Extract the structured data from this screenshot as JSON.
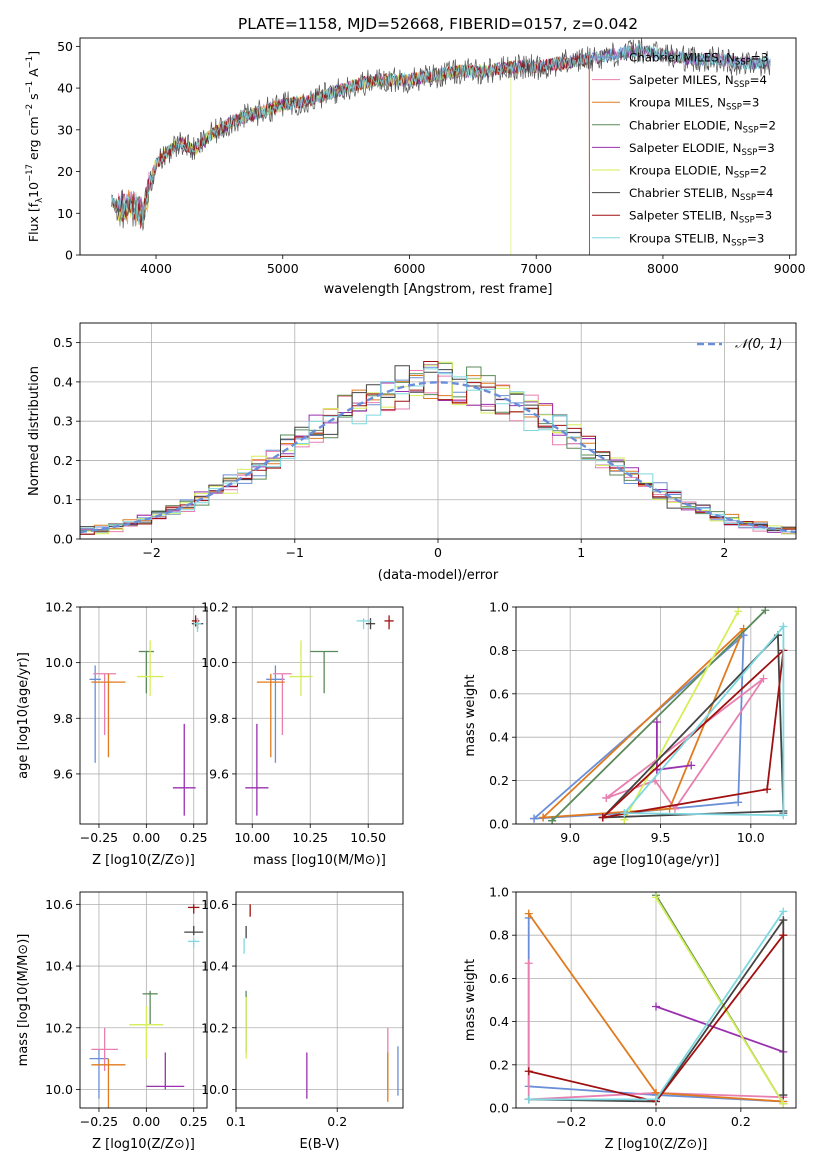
{
  "figure_title": "PLATE=1158, MJD=52668, FIBERID=0157, z=0.042",
  "colors": {
    "Chabrier MILES": "#6a8fd8",
    "Salpeter MILES": "#e87fb0",
    "Kroupa MILES": "#e07a1e",
    "Chabrier ELODIE": "#5a8a5a",
    "Salpeter ELODIE": "#9a30b0",
    "Kroupa ELODIE": "#d6ee5a",
    "Chabrier STELIB": "#444444",
    "Salpeter STELIB": "#a01010",
    "Kroupa STELIB": "#7fd8e0"
  },
  "chart_data": [
    {
      "id": "spectrum",
      "type": "line",
      "xlabel": "wavelength [Angstrom, rest frame]",
      "ylabel_pre": "Flux [f",
      "ylabel_sub": "λ",
      "ylabel_mid": "10",
      "ylabel_sup1": "−17",
      "ylabel_post": " erg cm",
      "ylabel_sup2": "−2",
      "ylabel_post2": " s",
      "ylabel_sup3": "−1",
      "ylabel_post3": " A",
      "ylabel_sup4": "−1",
      "ylabel_end": "]",
      "xlim": [
        3400,
        9050
      ],
      "ylim": [
        0,
        52
      ],
      "xticks": [
        "4000",
        "5000",
        "6000",
        "7000",
        "8000",
        "9000"
      ],
      "xtick_values": [
        4000,
        5000,
        6000,
        7000,
        8000,
        9000
      ],
      "yticks": [
        "0",
        "10",
        "20",
        "30",
        "40",
        "50"
      ],
      "ytick_values": [
        0,
        10,
        20,
        30,
        40,
        50
      ],
      "continuum": {
        "x": [
          3650,
          3700,
          3800,
          3900,
          3950,
          4000,
          4100,
          4200,
          4300,
          4400,
          4500,
          4600,
          4700,
          4800,
          4900,
          5000,
          5200,
          5400,
          5600,
          5800,
          6000,
          6200,
          6400,
          6600,
          6800,
          7000,
          7200,
          7400,
          7600,
          7800,
          8000,
          8200,
          8400,
          8600,
          8800
        ],
        "y": [
          13,
          11,
          12,
          10,
          17,
          22,
          25,
          27,
          25,
          28,
          30,
          32,
          33,
          34,
          35,
          36,
          37,
          39,
          41,
          42,
          42,
          43,
          44,
          44,
          45,
          45,
          46,
          47,
          48,
          49,
          48,
          47,
          47,
          46,
          46
        ]
      },
      "legend": [
        {
          "name": "Chabrier MILES",
          "nssp": "3"
        },
        {
          "name": "Salpeter MILES",
          "nssp": "4"
        },
        {
          "name": "Kroupa MILES",
          "nssp": "3"
        },
        {
          "name": "Chabrier ELODIE",
          "nssp": "2"
        },
        {
          "name": "Salpeter ELODIE",
          "nssp": "3"
        },
        {
          "name": "Kroupa ELODIE",
          "nssp": "2"
        },
        {
          "name": "Chabrier STELIB",
          "nssp": "4"
        },
        {
          "name": "Salpeter STELIB",
          "nssp": "3"
        },
        {
          "name": "Kroupa STELIB",
          "nssp": "3"
        }
      ],
      "legend_nssp_label": "N",
      "legend_nssp_sub": "SSP",
      "cutoffs": {
        "Salpeter STELIB": 7420,
        "Kroupa MILES": 7420,
        "Kroupa ELODIE": 6800
      }
    },
    {
      "id": "residuals",
      "type": "histogram",
      "xlabel": "(data-model)/error",
      "ylabel": "Normed distribution",
      "xlim": [
        -2.5,
        2.5
      ],
      "ylim": [
        0,
        0.55
      ],
      "xticks": [
        "−2",
        "−1",
        "0",
        "1",
        "2"
      ],
      "xtick_values": [
        -2,
        -1,
        0,
        1,
        2
      ],
      "yticks": [
        "0.0",
        "0.1",
        "0.2",
        "0.3",
        "0.4",
        "0.5"
      ],
      "ytick_values": [
        0,
        0.1,
        0.2,
        0.3,
        0.4,
        0.5
      ],
      "bin_width": 0.1,
      "normal_curve_label": "𝒩(0, 1)",
      "legend_position": "upper right"
    },
    {
      "id": "age_vs_Z",
      "type": "errorbar",
      "xlabel": "Z [log10(Z/Z⊙)]",
      "ylabel": "age  [log10(age/yr)]",
      "xlim": [
        -0.35,
        0.32
      ],
      "ylim": [
        9.42,
        10.2
      ],
      "xticks": [
        "−0.25",
        "0.00",
        "0.25"
      ],
      "xtick_values": [
        -0.25,
        0,
        0.25
      ],
      "yticks": [
        "9.6",
        "9.8",
        "10.0",
        "10.2"
      ],
      "ytick_values": [
        9.6,
        9.8,
        10.0,
        10.2
      ],
      "points": [
        {
          "model": "Chabrier MILES",
          "x": -0.27,
          "xerr": 0.03,
          "y": 9.94,
          "yerr": [
            0.3,
            0.05
          ]
        },
        {
          "model": "Salpeter MILES",
          "x": -0.22,
          "xerr": 0.06,
          "y": 9.96,
          "yerr": [
            0.22,
            0.0
          ]
        },
        {
          "model": "Kroupa MILES",
          "x": -0.2,
          "xerr": 0.09,
          "y": 9.93,
          "yerr": [
            0.27,
            0.03
          ]
        },
        {
          "model": "Chabrier ELODIE",
          "x": 0.0,
          "xerr": 0.04,
          "y": 10.04,
          "yerr": [
            0.15,
            0.0
          ]
        },
        {
          "model": "Salpeter ELODIE",
          "x": 0.2,
          "xerr": 0.06,
          "y": 9.55,
          "yerr": [
            0.1,
            0.23
          ]
        },
        {
          "model": "Kroupa ELODIE",
          "x": 0.02,
          "xerr": 0.07,
          "y": 9.95,
          "yerr": [
            0.07,
            0.13
          ]
        },
        {
          "model": "Chabrier STELIB",
          "x": 0.27,
          "xerr": 0.03,
          "y": 10.14,
          "yerr": [
            0.02,
            0.02
          ]
        },
        {
          "model": "Salpeter STELIB",
          "x": 0.26,
          "xerr": 0.02,
          "y": 10.15,
          "yerr": [
            0.02,
            0.02
          ]
        },
        {
          "model": "Kroupa STELIB",
          "x": 0.27,
          "xerr": 0.02,
          "y": 10.14,
          "yerr": [
            0.03,
            0.02
          ]
        }
      ]
    },
    {
      "id": "age_vs_mass",
      "type": "errorbar",
      "xlabel": "mass [log10(M/M⊙)]",
      "xlim": [
        9.93,
        10.65
      ],
      "ylim": [
        9.42,
        10.2
      ],
      "xticks": [
        "10.00",
        "10.25",
        "10.50"
      ],
      "xtick_values": [
        10.0,
        10.25,
        10.5
      ],
      "yticks": [
        "9.6",
        "9.8",
        "10.0",
        "10.2"
      ],
      "ytick_values": [
        9.6,
        9.8,
        10.0,
        10.2
      ],
      "points": [
        {
          "model": "Chabrier MILES",
          "x": 10.1,
          "xerr": 0.04,
          "y": 9.94,
          "yerr": [
            0.3,
            0.05
          ]
        },
        {
          "model": "Salpeter MILES",
          "x": 10.13,
          "xerr": 0.04,
          "y": 9.96,
          "yerr": [
            0.22,
            0.0
          ]
        },
        {
          "model": "Kroupa MILES",
          "x": 10.08,
          "xerr": 0.06,
          "y": 9.93,
          "yerr": [
            0.27,
            0.03
          ]
        },
        {
          "model": "Chabrier ELODIE",
          "x": 10.31,
          "xerr": 0.06,
          "y": 10.04,
          "yerr": [
            0.15,
            0.0
          ]
        },
        {
          "model": "Salpeter ELODIE",
          "x": 10.02,
          "xerr": 0.05,
          "y": 9.55,
          "yerr": [
            0.1,
            0.23
          ]
        },
        {
          "model": "Kroupa ELODIE",
          "x": 10.21,
          "xerr": 0.05,
          "y": 9.95,
          "yerr": [
            0.07,
            0.13
          ]
        },
        {
          "model": "Chabrier STELIB",
          "x": 10.51,
          "xerr": 0.02,
          "y": 10.14,
          "yerr": [
            0.02,
            0.02
          ]
        },
        {
          "model": "Salpeter STELIB",
          "x": 10.59,
          "xerr": 0.02,
          "y": 10.15,
          "yerr": [
            0.03,
            0.02
          ]
        },
        {
          "model": "Kroupa STELIB",
          "x": 10.48,
          "xerr": 0.03,
          "y": 10.15,
          "yerr": [
            0.03,
            0.01
          ]
        }
      ]
    },
    {
      "id": "massweight_vs_age",
      "type": "line",
      "xlabel": "age  [log10(age/yr)]",
      "ylabel": "mass weight",
      "xlim": [
        8.7,
        10.25
      ],
      "ylim": [
        0,
        1.0
      ],
      "xticks": [
        "9.0",
        "9.5",
        "10.0"
      ],
      "xtick_values": [
        9.0,
        9.5,
        10.0
      ],
      "yticks": [
        "0.0",
        "0.2",
        "0.4",
        "0.6",
        "0.8",
        "1.0"
      ],
      "ytick_values": [
        0,
        0.2,
        0.4,
        0.6,
        0.8,
        1.0
      ],
      "series": [
        {
          "model": "Chabrier MILES",
          "x": [
            8.8,
            9.3,
            9.93,
            9.96,
            8.8
          ],
          "y": [
            0.025,
            0.05,
            0.1,
            0.87,
            0.025
          ]
        },
        {
          "model": "Salpeter MILES",
          "x": [
            9.2,
            9.47,
            9.58,
            10.07,
            9.2
          ],
          "y": [
            0.12,
            0.2,
            0.07,
            0.67,
            0.12
          ]
        },
        {
          "model": "Kroupa MILES",
          "x": [
            8.85,
            9.55,
            9.96,
            8.85
          ],
          "y": [
            0.03,
            0.07,
            0.9,
            0.03
          ]
        },
        {
          "model": "Chabrier ELODIE",
          "x": [
            8.9,
            10.08,
            8.9
          ],
          "y": [
            0.015,
            0.985,
            0.015
          ]
        },
        {
          "model": "Salpeter ELODIE",
          "x": [
            9.48,
            9.48,
            9.67,
            9.48
          ],
          "y": [
            0.47,
            0.25,
            0.27,
            0.25
          ]
        },
        {
          "model": "Kroupa ELODIE",
          "x": [
            9.3,
            9.93,
            9.3
          ],
          "y": [
            0.02,
            0.98,
            0.02
          ]
        },
        {
          "model": "Chabrier STELIB",
          "x": [
            9.18,
            10.15,
            10.18,
            10.18,
            9.18
          ],
          "y": [
            0.03,
            0.87,
            0.05,
            0.06,
            0.03
          ]
        },
        {
          "model": "Salpeter STELIB",
          "x": [
            9.18,
            10.09,
            10.18,
            9.18
          ],
          "y": [
            0.03,
            0.16,
            0.8,
            0.03
          ]
        },
        {
          "model": "Kroupa STELIB",
          "x": [
            9.3,
            10.18,
            10.18,
            9.3
          ],
          "y": [
            0.05,
            0.04,
            0.91,
            0.05
          ]
        }
      ]
    },
    {
      "id": "mass_vs_Z",
      "type": "errorbar",
      "xlabel": "Z [log10(Z/Z⊙)]",
      "ylabel": "mass [log10(M/M⊙)]",
      "xlim": [
        -0.35,
        0.32
      ],
      "ylim": [
        9.94,
        10.64
      ],
      "xticks": [
        "−0.25",
        "0.00",
        "0.25"
      ],
      "xtick_values": [
        -0.25,
        0,
        0.25
      ],
      "yticks": [
        "10.0",
        "10.2",
        "10.4",
        "10.6"
      ],
      "ytick_values": [
        10.0,
        10.2,
        10.4,
        10.6
      ],
      "points": [
        {
          "model": "Chabrier MILES",
          "x": -0.25,
          "xerr": 0.05,
          "y": 10.1,
          "yerr": [
            0.13,
            0.03
          ]
        },
        {
          "model": "Salpeter MILES",
          "x": -0.22,
          "xerr": 0.07,
          "y": 10.13,
          "yerr": [
            0.07,
            0.07
          ]
        },
        {
          "model": "Kroupa MILES",
          "x": -0.2,
          "xerr": 0.09,
          "y": 10.08,
          "yerr": [
            0.14,
            0.02
          ]
        },
        {
          "model": "Chabrier ELODIE",
          "x": 0.02,
          "xerr": 0.04,
          "y": 10.31,
          "yerr": [
            0.1,
            0.01
          ]
        },
        {
          "model": "Salpeter ELODIE",
          "x": 0.1,
          "xerr": 0.1,
          "y": 10.01,
          "yerr": [
            0.01,
            0.11
          ]
        },
        {
          "model": "Kroupa ELODIE",
          "x": 0.0,
          "xerr": 0.09,
          "y": 10.21,
          "yerr": [
            0.11,
            0.06
          ]
        },
        {
          "model": "Chabrier STELIB",
          "x": 0.25,
          "xerr": 0.05,
          "y": 10.51,
          "yerr": [
            0.01,
            0.02
          ]
        },
        {
          "model": "Salpeter STELIB",
          "x": 0.25,
          "xerr": 0.03,
          "y": 10.59,
          "yerr": [
            0.02,
            0.01
          ]
        },
        {
          "model": "Kroupa STELIB",
          "x": 0.25,
          "xerr": 0.03,
          "y": 10.48,
          "yerr": [
            0.02,
            0.01
          ]
        }
      ]
    },
    {
      "id": "mass_vs_EBV",
      "type": "errorbar",
      "xlabel": "E(B-V)",
      "xlim": [
        0.1,
        0.265
      ],
      "ylim": [
        9.94,
        10.64
      ],
      "xticks": [
        "0.1",
        "0.2"
      ],
      "xtick_values": [
        0.1,
        0.2
      ],
      "yticks": [
        "10.0",
        "10.2",
        "10.4",
        "10.6"
      ],
      "ytick_values": [
        10.0,
        10.2,
        10.4,
        10.6
      ],
      "points": [
        {
          "model": "Chabrier MILES",
          "x": 0.26,
          "y": 10.08,
          "yerr": [
            0.1,
            0.06
          ]
        },
        {
          "model": "Salpeter MILES",
          "x": 0.25,
          "y": 10.1,
          "yerr": [
            0.1,
            0.1
          ]
        },
        {
          "model": "Kroupa MILES",
          "x": 0.25,
          "y": 10.08,
          "yerr": [
            0.12,
            0.04
          ]
        },
        {
          "model": "Chabrier ELODIE",
          "x": 0.11,
          "y": 10.24,
          "yerr": [
            0.12,
            0.08
          ]
        },
        {
          "model": "Salpeter ELODIE",
          "x": 0.17,
          "y": 10.03,
          "yerr": [
            0.06,
            0.09
          ]
        },
        {
          "model": "Kroupa ELODIE",
          "x": 0.11,
          "y": 10.2,
          "yerr": [
            0.1,
            0.1
          ]
        },
        {
          "model": "Chabrier STELIB",
          "x": 0.11,
          "y": 10.51,
          "yerr": [
            0.02,
            0.02
          ]
        },
        {
          "model": "Salpeter STELIB",
          "x": 0.114,
          "y": 10.58,
          "yerr": [
            0.02,
            0.02
          ]
        },
        {
          "model": "Kroupa STELIB",
          "x": 0.108,
          "y": 10.47,
          "yerr": [
            0.03,
            0.02
          ]
        }
      ]
    },
    {
      "id": "massweight_vs_Z",
      "type": "line",
      "xlabel": "Z [log10(Z/Z⊙)]",
      "ylabel": "mass weight",
      "xlim": [
        -0.33,
        0.33
      ],
      "ylim": [
        0,
        1.0
      ],
      "xticks": [
        "−0.2",
        "0.0",
        "0.2"
      ],
      "xtick_values": [
        -0.2,
        0,
        0.2
      ],
      "yticks": [
        "0.0",
        "0.2",
        "0.4",
        "0.6",
        "0.8",
        "1.0"
      ],
      "ytick_values": [
        0,
        0.2,
        0.4,
        0.6,
        0.8,
        1.0
      ],
      "series": [
        {
          "model": "Chabrier MILES",
          "x": [
            -0.3,
            -0.3,
            0.0,
            0.3
          ],
          "y": [
            0.88,
            0.1,
            0.06,
            0.03
          ]
        },
        {
          "model": "Salpeter MILES",
          "x": [
            -0.3,
            -0.3,
            0.0,
            0.3
          ],
          "y": [
            0.67,
            0.04,
            0.07,
            0.05
          ]
        },
        {
          "model": "Kroupa MILES",
          "x": [
            -0.3,
            0.0,
            0.3
          ],
          "y": [
            0.9,
            0.07,
            0.03
          ]
        },
        {
          "model": "Chabrier ELODIE",
          "x": [
            0.0,
            0.3
          ],
          "y": [
            0.985,
            0.02
          ]
        },
        {
          "model": "Salpeter ELODIE",
          "x": [
            0.0,
            0.3
          ],
          "y": [
            0.47,
            0.26
          ]
        },
        {
          "model": "Kroupa ELODIE",
          "x": [
            0.0,
            0.3
          ],
          "y": [
            0.975,
            0.02
          ]
        },
        {
          "model": "Chabrier STELIB",
          "x": [
            -0.3,
            0.0,
            0.3,
            0.3
          ],
          "y": [
            0.04,
            0.03,
            0.87,
            0.06
          ]
        },
        {
          "model": "Salpeter STELIB",
          "x": [
            -0.3,
            0.0,
            0.3
          ],
          "y": [
            0.17,
            0.03,
            0.8
          ]
        },
        {
          "model": "Kroupa STELIB",
          "x": [
            -0.3,
            0.0,
            0.3
          ],
          "y": [
            0.04,
            0.04,
            0.91
          ]
        }
      ]
    }
  ]
}
